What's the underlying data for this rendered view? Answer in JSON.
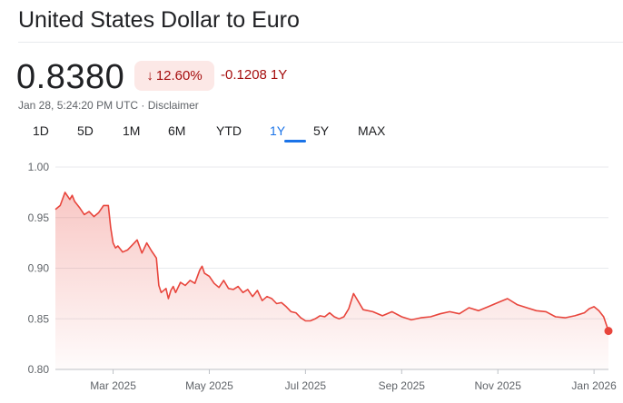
{
  "header": {
    "title": "United States Dollar to Euro"
  },
  "quote": {
    "price": "0.8380",
    "change_percent": "12.60%",
    "change_arrow": "↓",
    "change_value": "-0.1208",
    "change_period": "1Y",
    "timestamp": "Jan 28, 5:24:20 PM UTC",
    "separator": "·",
    "disclaimer": "Disclaimer"
  },
  "ranges": [
    {
      "label": "1D",
      "active": false
    },
    {
      "label": "5D",
      "active": false
    },
    {
      "label": "1M",
      "active": false
    },
    {
      "label": "6M",
      "active": false
    },
    {
      "label": "YTD",
      "active": false
    },
    {
      "label": "1Y",
      "active": true
    },
    {
      "label": "5Y",
      "active": false
    },
    {
      "label": "MAX",
      "active": false
    }
  ],
  "colors": {
    "line": "#e8453c",
    "negative_text": "#a50e0e",
    "badge_bg": "#fce8e6",
    "active_tab": "#1a73e8"
  },
  "chart_data": {
    "type": "area",
    "ylim": [
      0.8,
      1.0
    ],
    "y_ticks": [
      "1.00",
      "0.95",
      "0.90",
      "0.85",
      "0.80"
    ],
    "x_ticks": [
      "Mar 2025",
      "May 2025",
      "Jul 2025",
      "Sep 2025",
      "Nov 2025",
      "Jan 2026"
    ],
    "x_tick_positions": [
      1,
      3,
      5,
      7,
      9,
      11
    ],
    "xlim": [
      -0.2,
      11.3
    ],
    "grid": true,
    "series": [
      {
        "x": [
          -0.2,
          -0.1,
          0.0,
          0.1,
          0.15,
          0.2,
          0.3,
          0.4,
          0.5,
          0.6,
          0.7,
          0.8,
          0.9,
          0.95,
          1.0,
          1.05,
          1.1,
          1.2,
          1.3,
          1.4,
          1.5,
          1.6,
          1.7,
          1.8,
          1.9,
          1.95,
          2.0,
          2.1,
          2.15,
          2.2,
          2.25,
          2.3,
          2.4,
          2.5,
          2.6,
          2.7,
          2.8,
          2.85,
          2.9,
          3.0,
          3.1,
          3.2,
          3.3,
          3.4,
          3.5,
          3.6,
          3.7,
          3.8,
          3.9,
          4.0,
          4.1,
          4.2,
          4.3,
          4.4,
          4.5,
          4.6,
          4.7,
          4.8,
          4.9,
          5.0,
          5.1,
          5.2,
          5.3,
          5.4,
          5.5,
          5.6,
          5.7,
          5.8,
          5.9,
          6.0,
          6.2,
          6.4,
          6.6,
          6.8,
          7.0,
          7.2,
          7.4,
          7.6,
          7.8,
          8.0,
          8.2,
          8.4,
          8.6,
          8.8,
          9.0,
          9.2,
          9.4,
          9.6,
          9.8,
          10.0,
          10.2,
          10.4,
          10.6,
          10.8,
          10.9,
          11.0,
          11.1,
          11.2,
          11.3
        ],
        "values": [
          0.958,
          0.962,
          0.975,
          0.968,
          0.972,
          0.966,
          0.96,
          0.953,
          0.956,
          0.951,
          0.955,
          0.962,
          0.962,
          0.94,
          0.925,
          0.92,
          0.922,
          0.916,
          0.918,
          0.923,
          0.928,
          0.915,
          0.925,
          0.917,
          0.91,
          0.883,
          0.876,
          0.88,
          0.87,
          0.878,
          0.882,
          0.876,
          0.886,
          0.883,
          0.888,
          0.885,
          0.898,
          0.902,
          0.895,
          0.892,
          0.885,
          0.881,
          0.888,
          0.88,
          0.879,
          0.882,
          0.876,
          0.879,
          0.872,
          0.878,
          0.868,
          0.872,
          0.87,
          0.865,
          0.866,
          0.862,
          0.857,
          0.856,
          0.851,
          0.848,
          0.848,
          0.85,
          0.853,
          0.852,
          0.856,
          0.852,
          0.85,
          0.852,
          0.86,
          0.875,
          0.859,
          0.857,
          0.853,
          0.857,
          0.852,
          0.849,
          0.851,
          0.852,
          0.855,
          0.857,
          0.855,
          0.861,
          0.858,
          0.862,
          0.866,
          0.87,
          0.864,
          0.861,
          0.858,
          0.857,
          0.852,
          0.851,
          0.853,
          0.856,
          0.86,
          0.862,
          0.858,
          0.852,
          0.838
        ]
      }
    ]
  }
}
